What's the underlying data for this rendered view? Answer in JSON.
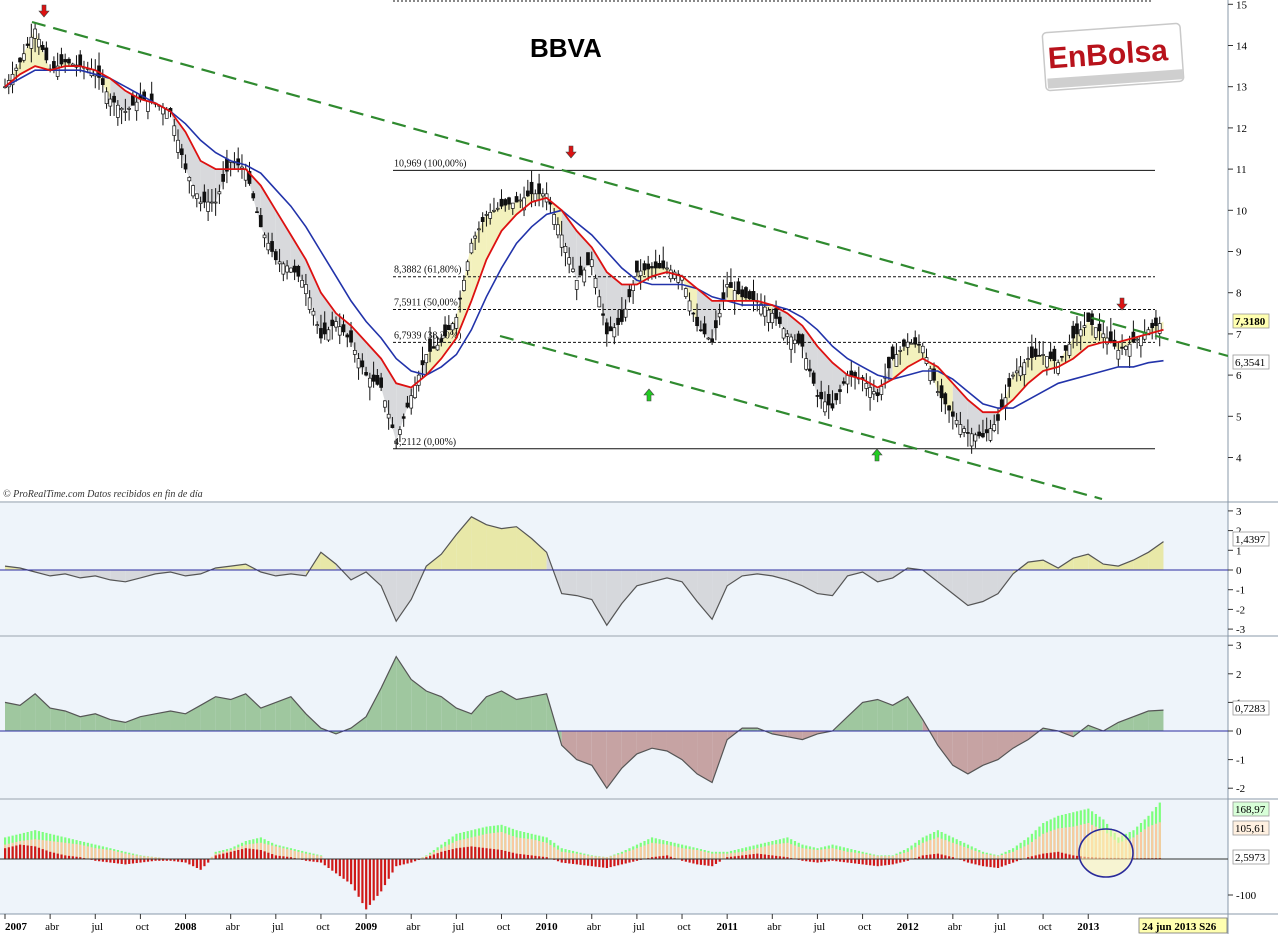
{
  "chart_data": [
    {
      "type": "line",
      "name": "price-panel",
      "title": "BBVA",
      "ylim": [
        3.4,
        15.2
      ],
      "y_ticks": [
        "4",
        "5",
        "6",
        "7",
        "8",
        "9",
        "10",
        "11",
        "12",
        "13",
        "14",
        "15"
      ],
      "x_ticks": [
        "2007",
        "abr",
        "jul",
        "oct",
        "2008",
        "abr",
        "jul",
        "oct",
        "2009",
        "abr",
        "jul",
        "oct",
        "2010",
        "abr",
        "jul",
        "oct",
        "2011",
        "abr",
        "jul",
        "oct",
        "2012",
        "abr",
        "jul",
        "oct",
        "2013"
      ],
      "date_label": "24 jun 2013 S26",
      "last_price": "7,3180",
      "ma_value": "6,3541",
      "credit": "© ProRealTime.com  Datos recibidos en fin de día",
      "logo": "EnBolsa",
      "fib_levels": [
        {
          "value": 10.969,
          "label": "10,969 (100,00%)"
        },
        {
          "value": 8.3882,
          "label": "8,3882 (61,80%)"
        },
        {
          "value": 7.5911,
          "label": "7,5911 (50,00%)"
        },
        {
          "value": 6.7939,
          "label": "6,7939 (38,20%)"
        },
        {
          "value": 4.2112,
          "label": "4,2112 (0,00%)"
        }
      ],
      "x": [
        "2007-01",
        "2007-02",
        "2007-03",
        "2007-04",
        "2007-05",
        "2007-06",
        "2007-07",
        "2007-08",
        "2007-09",
        "2007-10",
        "2007-11",
        "2007-12",
        "2008-01",
        "2008-02",
        "2008-03",
        "2008-04",
        "2008-05",
        "2008-06",
        "2008-07",
        "2008-08",
        "2008-09",
        "2008-10",
        "2008-11",
        "2008-12",
        "2009-01",
        "2009-02",
        "2009-03",
        "2009-04",
        "2009-05",
        "2009-06",
        "2009-07",
        "2009-08",
        "2009-09",
        "2009-10",
        "2009-11",
        "2009-12",
        "2010-01",
        "2010-02",
        "2010-03",
        "2010-04",
        "2010-05",
        "2010-06",
        "2010-07",
        "2010-08",
        "2010-09",
        "2010-10",
        "2010-11",
        "2010-12",
        "2011-01",
        "2011-02",
        "2011-03",
        "2011-04",
        "2011-05",
        "2011-06",
        "2011-07",
        "2011-08",
        "2011-09",
        "2011-10",
        "2011-11",
        "2011-12",
        "2012-01",
        "2012-02",
        "2012-03",
        "2012-04",
        "2012-05",
        "2012-06",
        "2012-07",
        "2012-08",
        "2012-09",
        "2012-10",
        "2012-11",
        "2012-12",
        "2013-01",
        "2013-02",
        "2013-03",
        "2013-04",
        "2013-05",
        "2013-06"
      ],
      "series": [
        {
          "values": [
            13.0,
            13.6,
            14.4,
            13.4,
            13.6,
            13.5,
            13.4,
            12.7,
            12.4,
            12.7,
            12.6,
            12.4,
            11.0,
            10.2,
            10.2,
            11.2,
            11.0,
            9.6,
            8.8,
            8.6,
            8.2,
            6.9,
            7.3,
            6.8,
            6.0,
            5.7,
            4.4,
            5.5,
            6.5,
            6.8,
            7.4,
            9.2,
            9.9,
            10.1,
            10.2,
            10.4,
            10.4,
            9.4,
            8.3,
            8.8,
            7.0,
            7.3,
            8.5,
            8.6,
            8.6,
            8.4,
            7.2,
            6.8,
            8.2,
            7.9,
            7.8,
            7.5,
            7.0,
            6.7,
            5.5,
            5.2,
            6.0,
            5.9,
            5.5,
            6.4,
            6.8,
            6.7,
            5.6,
            5.0,
            4.6,
            4.5,
            4.9,
            6.0,
            6.4,
            6.5,
            6.3,
            6.9,
            7.3,
            7.0,
            6.6,
            6.8,
            7.1,
            7.3
          ]
        },
        {
          "values": [
            13.0,
            13.3,
            13.5,
            13.4,
            13.5,
            13.5,
            13.4,
            13.2,
            12.9,
            12.7,
            12.6,
            12.4,
            11.9,
            11.2,
            11.0,
            11.0,
            11.0,
            10.6,
            10.0,
            9.4,
            8.8,
            8.0,
            7.5,
            7.2,
            6.8,
            6.4,
            5.8,
            5.7,
            6.0,
            6.4,
            6.9,
            7.8,
            8.8,
            9.5,
            9.9,
            10.2,
            10.3,
            10.0,
            9.5,
            9.1,
            8.5,
            8.2,
            8.2,
            8.4,
            8.5,
            8.4,
            8.1,
            7.8,
            7.8,
            7.8,
            7.8,
            7.7,
            7.5,
            7.2,
            6.7,
            6.3,
            6.0,
            5.9,
            5.7,
            5.9,
            6.2,
            6.4,
            6.2,
            5.8,
            5.4,
            5.1,
            5.1,
            5.4,
            5.8,
            6.1,
            6.2,
            6.4,
            6.7,
            6.8,
            6.8,
            6.9,
            7.0,
            7.1
          ]
        },
        {
          "values": [
            13.0,
            13.2,
            13.4,
            13.4,
            13.4,
            13.4,
            13.3,
            13.2,
            13.0,
            12.8,
            12.6,
            12.4,
            12.1,
            11.7,
            11.4,
            11.2,
            11.1,
            10.9,
            10.5,
            10.1,
            9.6,
            9.0,
            8.4,
            7.8,
            7.3,
            6.9,
            6.4,
            6.1,
            6.0,
            6.2,
            6.5,
            7.1,
            7.9,
            8.6,
            9.2,
            9.6,
            9.9,
            10.0,
            9.7,
            9.4,
            9.0,
            8.6,
            8.3,
            8.2,
            8.2,
            8.2,
            8.1,
            7.9,
            7.8,
            7.7,
            7.7,
            7.7,
            7.6,
            7.4,
            7.1,
            6.7,
            6.4,
            6.2,
            6.0,
            5.9,
            6.0,
            6.1,
            6.1,
            5.9,
            5.6,
            5.3,
            5.2,
            5.2,
            5.4,
            5.6,
            5.8,
            5.9,
            6.0,
            6.1,
            6.2,
            6.2,
            6.3,
            6.35
          ]
        }
      ]
    },
    {
      "type": "area",
      "name": "oscillator-1",
      "ylim": [
        -3.3,
        3.3
      ],
      "y_ticks": [
        "3",
        "2",
        "1",
        "0",
        "-1",
        "-2",
        "-3"
      ],
      "last_value": "1,4397",
      "x": [
        "2007-01",
        "2007-02",
        "2007-03",
        "2007-04",
        "2007-05",
        "2007-06",
        "2007-07",
        "2007-08",
        "2007-09",
        "2007-10",
        "2007-11",
        "2007-12",
        "2008-01",
        "2008-02",
        "2008-03",
        "2008-04",
        "2008-05",
        "2008-06",
        "2008-07",
        "2008-08",
        "2008-09",
        "2008-10",
        "2008-11",
        "2008-12",
        "2009-01",
        "2009-02",
        "2009-03",
        "2009-04",
        "2009-05",
        "2009-06",
        "2009-07",
        "2009-08",
        "2009-09",
        "2009-10",
        "2009-11",
        "2009-12",
        "2010-01",
        "2010-02",
        "2010-03",
        "2010-04",
        "2010-05",
        "2010-06",
        "2010-07",
        "2010-08",
        "2010-09",
        "2010-10",
        "2010-11",
        "2010-12",
        "2011-01",
        "2011-02",
        "2011-03",
        "2011-04",
        "2011-05",
        "2011-06",
        "2011-07",
        "2011-08",
        "2011-09",
        "2011-10",
        "2011-11",
        "2011-12",
        "2012-01",
        "2012-02",
        "2012-03",
        "2012-04",
        "2012-05",
        "2012-06",
        "2012-07",
        "2012-08",
        "2012-09",
        "2012-10",
        "2012-11",
        "2012-12",
        "2013-01",
        "2013-02",
        "2013-03",
        "2013-04",
        "2013-05",
        "2013-06"
      ],
      "values": [
        0.2,
        0.1,
        -0.1,
        -0.3,
        -0.2,
        -0.4,
        -0.3,
        -0.5,
        -0.6,
        -0.4,
        -0.2,
        -0.1,
        -0.3,
        -0.2,
        0.1,
        0.2,
        0.3,
        -0.1,
        -0.3,
        -0.2,
        -0.3,
        0.9,
        0.3,
        -0.5,
        -0.1,
        -0.8,
        -2.6,
        -1.5,
        0.2,
        0.8,
        1.8,
        2.7,
        2.3,
        2.1,
        2.2,
        1.6,
        0.9,
        -1.2,
        -1.3,
        -1.5,
        -2.8,
        -1.7,
        -0.8,
        -0.6,
        -0.4,
        -0.6,
        -1.6,
        -2.5,
        -0.8,
        -0.3,
        -0.2,
        -0.3,
        -0.5,
        -0.8,
        -1.2,
        -1.3,
        -0.3,
        -0.1,
        -0.6,
        -0.4,
        0.1,
        0.0,
        -0.6,
        -1.2,
        -1.8,
        -1.6,
        -1.2,
        -0.2,
        0.4,
        0.5,
        0.1,
        0.6,
        0.8,
        0.3,
        0.2,
        0.5,
        0.9,
        1.44
      ]
    },
    {
      "type": "area",
      "name": "oscillator-2",
      "ylim": [
        -3.3,
        3.3
      ],
      "y_ticks": [
        "3",
        "2",
        "1",
        "0",
        "-1",
        "-2"
      ],
      "last_value": "0,7283",
      "x": [
        "2007-01",
        "2007-02",
        "2007-03",
        "2007-04",
        "2007-05",
        "2007-06",
        "2007-07",
        "2007-08",
        "2007-09",
        "2007-10",
        "2007-11",
        "2007-12",
        "2008-01",
        "2008-02",
        "2008-03",
        "2008-04",
        "2008-05",
        "2008-06",
        "2008-07",
        "2008-08",
        "2008-09",
        "2008-10",
        "2008-11",
        "2008-12",
        "2009-01",
        "2009-02",
        "2009-03",
        "2009-04",
        "2009-05",
        "2009-06",
        "2009-07",
        "2009-08",
        "2009-09",
        "2009-10",
        "2009-11",
        "2009-12",
        "2010-01",
        "2010-02",
        "2010-03",
        "2010-04",
        "2010-05",
        "2010-06",
        "2010-07",
        "2010-08",
        "2010-09",
        "2010-10",
        "2010-11",
        "2010-12",
        "2011-01",
        "2011-02",
        "2011-03",
        "2011-04",
        "2011-05",
        "2011-06",
        "2011-07",
        "2011-08",
        "2011-09",
        "2011-10",
        "2011-11",
        "2011-12",
        "2012-01",
        "2012-02",
        "2012-03",
        "2012-04",
        "2012-05",
        "2012-06",
        "2012-07",
        "2012-08",
        "2012-09",
        "2012-10",
        "2012-11",
        "2012-12",
        "2013-01",
        "2013-02",
        "2013-03",
        "2013-04",
        "2013-05",
        "2013-06"
      ],
      "values": [
        1.0,
        0.9,
        1.3,
        0.8,
        0.7,
        0.5,
        0.6,
        0.4,
        0.3,
        0.5,
        0.6,
        0.7,
        0.6,
        0.9,
        1.2,
        1.1,
        1.3,
        0.8,
        1.0,
        1.2,
        0.6,
        0.1,
        -0.1,
        0.1,
        0.5,
        1.5,
        2.6,
        1.8,
        1.4,
        1.2,
        0.8,
        0.6,
        1.2,
        1.4,
        1.1,
        1.2,
        1.3,
        -0.5,
        -1.0,
        -1.2,
        -2.0,
        -1.3,
        -0.8,
        -0.6,
        -0.7,
        -1.0,
        -1.5,
        -1.8,
        -0.3,
        0.1,
        0.1,
        -0.1,
        -0.2,
        -0.3,
        -0.1,
        0.0,
        0.5,
        1.0,
        1.1,
        0.9,
        1.2,
        0.4,
        -0.5,
        -1.2,
        -1.5,
        -1.2,
        -1.0,
        -0.6,
        -0.3,
        0.1,
        0.0,
        -0.2,
        0.2,
        0.0,
        0.3,
        0.5,
        0.7,
        0.73
      ]
    },
    {
      "type": "bar",
      "name": "volume-oscillator",
      "ylim": [
        -160,
        190
      ],
      "y_ticks": [
        "-100"
      ],
      "value_labels": [
        "168,97",
        "105,61",
        "2,5973"
      ],
      "x": [
        "2007-01",
        "2007-02",
        "2007-03",
        "2007-04",
        "2007-05",
        "2007-06",
        "2007-07",
        "2007-08",
        "2007-09",
        "2007-10",
        "2007-11",
        "2007-12",
        "2008-01",
        "2008-02",
        "2008-03",
        "2008-04",
        "2008-05",
        "2008-06",
        "2008-07",
        "2008-08",
        "2008-09",
        "2008-10",
        "2008-11",
        "2008-12",
        "2009-01",
        "2009-02",
        "2009-03",
        "2009-04",
        "2009-05",
        "2009-06",
        "2009-07",
        "2009-08",
        "2009-09",
        "2009-10",
        "2009-11",
        "2009-12",
        "2010-01",
        "2010-02",
        "2010-03",
        "2010-04",
        "2010-05",
        "2010-06",
        "2010-07",
        "2010-08",
        "2010-09",
        "2010-10",
        "2010-11",
        "2010-12",
        "2011-01",
        "2011-02",
        "2011-03",
        "2011-04",
        "2011-05",
        "2011-06",
        "2011-07",
        "2011-08",
        "2011-09",
        "2011-10",
        "2011-11",
        "2011-12",
        "2012-01",
        "2012-02",
        "2012-03",
        "2012-04",
        "2012-05",
        "2012-06",
        "2012-07",
        "2012-08",
        "2012-09",
        "2012-10",
        "2012-11",
        "2012-12",
        "2013-01",
        "2013-02",
        "2013-03",
        "2013-04",
        "2013-05",
        "2013-06"
      ],
      "series": [
        {
          "values": [
            60,
            70,
            80,
            70,
            60,
            50,
            40,
            30,
            20,
            10,
            5,
            0,
            -10,
            -40,
            20,
            30,
            50,
            60,
            40,
            30,
            20,
            10,
            -30,
            -60,
            -150,
            -100,
            -20,
            -10,
            10,
            40,
            70,
            80,
            90,
            95,
            80,
            70,
            60,
            30,
            20,
            10,
            5,
            20,
            40,
            60,
            50,
            40,
            30,
            20,
            20,
            30,
            40,
            50,
            60,
            40,
            30,
            40,
            30,
            20,
            10,
            10,
            30,
            60,
            80,
            60,
            40,
            20,
            10,
            30,
            60,
            100,
            120,
            130,
            140,
            110,
            60,
            80,
            120,
            169
          ]
        },
        {
          "values": [
            40,
            50,
            55,
            50,
            45,
            40,
            30,
            25,
            15,
            8,
            5,
            0,
            -5,
            -20,
            15,
            25,
            40,
            45,
            35,
            25,
            15,
            8,
            -20,
            -40,
            -120,
            -80,
            -15,
            -5,
            8,
            30,
            50,
            60,
            70,
            75,
            60,
            55,
            45,
            20,
            15,
            8,
            5,
            15,
            30,
            45,
            40,
            30,
            25,
            15,
            15,
            20,
            30,
            40,
            45,
            30,
            25,
            30,
            20,
            15,
            8,
            8,
            20,
            45,
            60,
            45,
            30,
            15,
            8,
            20,
            40,
            70,
            85,
            90,
            100,
            80,
            45,
            60,
            90,
            106
          ]
        },
        {
          "values": [
            30,
            40,
            35,
            20,
            10,
            5,
            -5,
            -10,
            -15,
            -10,
            -5,
            -5,
            -10,
            -30,
            10,
            20,
            30,
            25,
            10,
            5,
            -5,
            -10,
            -40,
            -70,
            -140,
            -90,
            -20,
            -10,
            5,
            20,
            30,
            35,
            30,
            25,
            15,
            10,
            5,
            -10,
            -15,
            -20,
            -25,
            -15,
            -5,
            5,
            10,
            -5,
            -15,
            -20,
            5,
            10,
            15,
            10,
            5,
            -5,
            -10,
            -5,
            -10,
            -15,
            -20,
            -15,
            -5,
            10,
            15,
            5,
            -10,
            -20,
            -25,
            -10,
            5,
            15,
            20,
            10,
            5,
            3,
            3,
            2,
            2,
            2.6
          ]
        }
      ]
    }
  ]
}
